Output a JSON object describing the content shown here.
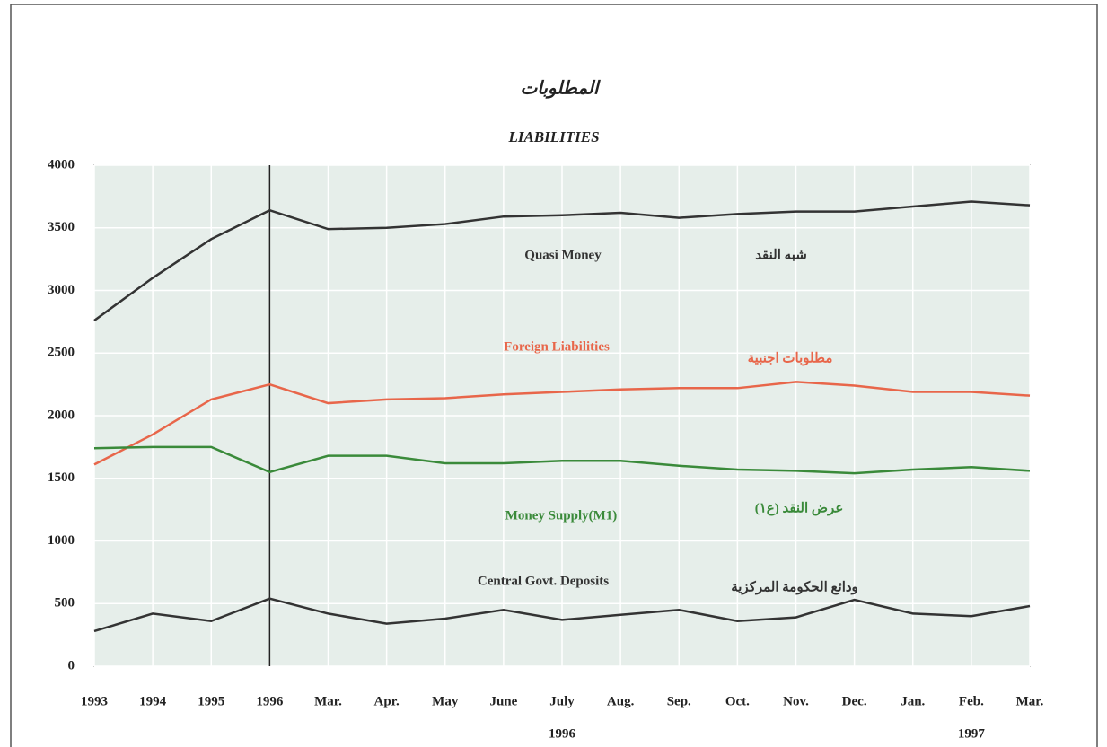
{
  "chart_data": {
    "type": "line",
    "title": "المطلوبات",
    "subtitle": "LIABILITIES",
    "categories": [
      "1993",
      "1994",
      "1995",
      "1996",
      "Mar.",
      "Apr.",
      "May",
      "June",
      "July",
      "Aug.",
      "Sep.",
      "Oct.",
      "Nov.",
      "Dec.",
      "Jan.",
      "Feb.",
      "Mar."
    ],
    "period_labels": [
      "1996",
      "1997"
    ],
    "series": [
      {
        "name": "Quasi Money",
        "name_ar": "شبه النقد",
        "color": "#333333",
        "values": [
          2760,
          3100,
          3410,
          3640,
          3490,
          3500,
          3530,
          3590,
          3600,
          3620,
          3580,
          3610,
          3630,
          3630,
          3670,
          3710,
          3680
        ]
      },
      {
        "name": "Foreign Liabilities",
        "name_ar": "مطلوبات اجنبية",
        "color": "#e8664a",
        "values": [
          1610,
          1850,
          2130,
          2250,
          2100,
          2130,
          2140,
          2170,
          2190,
          2210,
          2220,
          2220,
          2270,
          2240,
          2190,
          2190,
          2160
        ]
      },
      {
        "name": "Money Supply(M1)",
        "name_ar": "عرض النقد (ع١)",
        "color": "#3a8a3a",
        "values": [
          1740,
          1750,
          1750,
          1550,
          1680,
          1680,
          1620,
          1620,
          1640,
          1640,
          1600,
          1570,
          1560,
          1540,
          1570,
          1590,
          1560
        ]
      },
      {
        "name": "Central Govt. Deposits",
        "name_ar": "ودائع الحكومة المركزية",
        "color": "#333333",
        "values": [
          280,
          420,
          360,
          540,
          420,
          340,
          380,
          450,
          370,
          410,
          450,
          360,
          390,
          530,
          420,
          400,
          480
        ]
      }
    ],
    "ylim": [
      0,
      4000
    ],
    "yticks": [
      0,
      500,
      1000,
      1500,
      2000,
      2500,
      3000,
      3500,
      4000
    ],
    "grid": true
  }
}
